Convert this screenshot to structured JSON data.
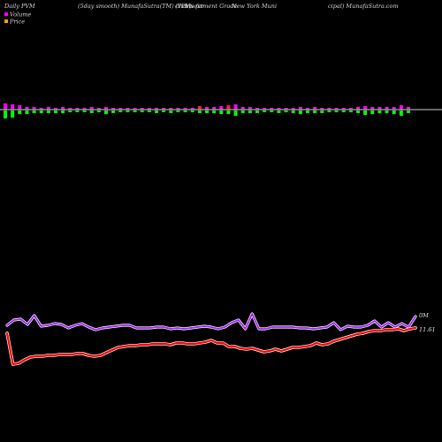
{
  "header": {
    "left": "Daily PVM",
    "center_1": "(5day smooth) MunafaSutra(TM) charts for",
    "center_2": "(VPV)",
    "center_3": "Investment Grade",
    "center_4": "New York Muni",
    "center_5": "cipal) MunafaSutra.com"
  },
  "legend": [
    {
      "label": "Volume",
      "color": "#ff00ff"
    },
    {
      "label": "Price",
      "color": "#ffa500"
    }
  ],
  "colors": {
    "background": "#000000",
    "volume_up": "#ff00ff",
    "volume_down": "#00ff00",
    "volume_mid": "#ff1a4a",
    "baseline": "#d0d0d0",
    "upper_line": "#a020f0",
    "price_line": "#ff0000",
    "price_glow": "#ffffff"
  },
  "chart_data": {
    "type": "line",
    "volume_label": "0M",
    "price_label": "11.61",
    "volume_bars": [
      {
        "up": 7,
        "down": 9,
        "color": "volume_up"
      },
      {
        "up": 6,
        "down": 8,
        "color": "volume_up"
      },
      {
        "up": 5,
        "down": 4,
        "color": "volume_up"
      },
      {
        "up": 3,
        "down": 4,
        "color": "volume_up"
      },
      {
        "up": 3,
        "down": 3,
        "color": "volume_up"
      },
      {
        "up": 2,
        "down": 3,
        "color": "volume_up"
      },
      {
        "up": 3,
        "down": 3,
        "color": "volume_up"
      },
      {
        "up": 2,
        "down": 3,
        "color": "volume_up"
      },
      {
        "up": 3,
        "down": 3,
        "color": "volume_up"
      },
      {
        "up": 2,
        "down": 2,
        "color": "volume_up"
      },
      {
        "up": 2,
        "down": 2,
        "color": "volume_up"
      },
      {
        "up": 2,
        "down": 2,
        "color": "volume_up"
      },
      {
        "up": 3,
        "down": 3,
        "color": "volume_up"
      },
      {
        "up": 2,
        "down": 2,
        "color": "volume_up"
      },
      {
        "up": 3,
        "down": 4,
        "color": "volume_up"
      },
      {
        "up": 2,
        "down": 3,
        "color": "volume_up"
      },
      {
        "up": 2,
        "down": 2,
        "color": "volume_up"
      },
      {
        "up": 2,
        "down": 2,
        "color": "volume_up"
      },
      {
        "up": 2,
        "down": 2,
        "color": "volume_up"
      },
      {
        "up": 2,
        "down": 2,
        "color": "volume_up"
      },
      {
        "up": 2,
        "down": 2,
        "color": "volume_up"
      },
      {
        "up": 2,
        "down": 3,
        "color": "volume_up"
      },
      {
        "up": 2,
        "down": 2,
        "color": "volume_up"
      },
      {
        "up": 2,
        "down": 3,
        "color": "volume_up"
      },
      {
        "up": 2,
        "down": 2,
        "color": "volume_up"
      },
      {
        "up": 2,
        "down": 2,
        "color": "volume_up"
      },
      {
        "up": 2,
        "down": 2,
        "color": "volume_up"
      },
      {
        "up": 4,
        "down": 3,
        "color": "volume_mid"
      },
      {
        "up": 3,
        "down": 3,
        "color": "volume_up"
      },
      {
        "up": 3,
        "down": 3,
        "color": "volume_up"
      },
      {
        "up": 4,
        "down": 4,
        "color": "volume_up"
      },
      {
        "up": 5,
        "down": 4,
        "color": "volume_mid"
      },
      {
        "up": 6,
        "down": 6,
        "color": "volume_up"
      },
      {
        "up": 3,
        "down": 3,
        "color": "volume_up"
      },
      {
        "up": 3,
        "down": 3,
        "color": "volume_up"
      },
      {
        "up": 2,
        "down": 3,
        "color": "volume_up"
      },
      {
        "up": 2,
        "down": 2,
        "color": "volume_up"
      },
      {
        "up": 2,
        "down": 2,
        "color": "volume_up"
      },
      {
        "up": 2,
        "down": 3,
        "color": "volume_up"
      },
      {
        "up": 2,
        "down": 2,
        "color": "volume_up"
      },
      {
        "up": 2,
        "down": 3,
        "color": "volume_up"
      },
      {
        "up": 3,
        "down": 4,
        "color": "volume_up"
      },
      {
        "up": 2,
        "down": 3,
        "color": "volume_up"
      },
      {
        "up": 3,
        "down": 3,
        "color": "volume_up"
      },
      {
        "up": 2,
        "down": 3,
        "color": "volume_up"
      },
      {
        "up": 2,
        "down": 2,
        "color": "volume_up"
      },
      {
        "up": 2,
        "down": 2,
        "color": "volume_up"
      },
      {
        "up": 2,
        "down": 2,
        "color": "volume_up"
      },
      {
        "up": 2,
        "down": 2,
        "color": "volume_up"
      },
      {
        "up": 3,
        "down": 3,
        "color": "volume_up"
      },
      {
        "up": 4,
        "down": 5,
        "color": "volume_up"
      },
      {
        "up": 3,
        "down": 4,
        "color": "volume_up"
      },
      {
        "up": 3,
        "down": 3,
        "color": "volume_up"
      },
      {
        "up": 3,
        "down": 3,
        "color": "volume_up"
      },
      {
        "up": 3,
        "down": 4,
        "color": "volume_up"
      },
      {
        "up": 5,
        "down": 6,
        "color": "volume_up"
      },
      {
        "up": 3,
        "down": 3,
        "color": "volume_up"
      }
    ],
    "upper_line": [
      368,
      362,
      361,
      367,
      357,
      369,
      368,
      366,
      367,
      371,
      368,
      366,
      370,
      373,
      371,
      370,
      369,
      368,
      368,
      371,
      371,
      371,
      370,
      370,
      372,
      371,
      372,
      371,
      370,
      369,
      370,
      372,
      370,
      365,
      362,
      372,
      355,
      372,
      372,
      370,
      370,
      370,
      370,
      371,
      371,
      372,
      371,
      370,
      365,
      373,
      369,
      370,
      370,
      368,
      363,
      370,
      365,
      370,
      366,
      370,
      358
    ],
    "price_line": [
      377,
      412,
      411,
      407,
      404,
      403,
      403,
      402,
      402,
      401,
      401,
      401,
      400,
      400,
      402,
      403,
      402,
      399,
      396,
      393,
      392,
      391,
      391,
      390,
      390,
      389,
      389,
      389,
      390,
      388,
      388,
      389,
      389,
      388,
      387,
      385,
      388,
      388,
      392,
      392,
      394,
      395,
      394,
      396,
      398,
      397,
      395,
      397,
      395,
      393,
      393,
      392,
      391,
      388,
      390,
      389,
      386,
      384,
      382,
      380,
      378,
      377,
      375,
      374,
      374,
      373,
      373,
      372,
      374,
      372,
      371
    ]
  }
}
